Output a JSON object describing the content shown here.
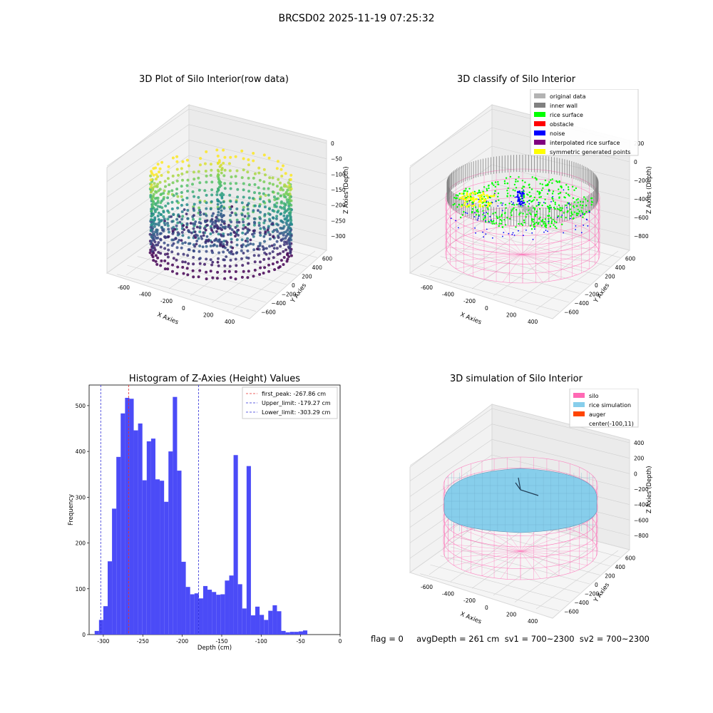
{
  "figure": {
    "suptitle": "BRCSD02 2025-11-19 07:25:32",
    "footer": "flag = 0     avgDepth = 261 cm  sv1 = 700~2300  sv2 = 700~2300"
  },
  "colors": {
    "hist_bar": "#4b4bf7",
    "first_peak": "#e8312d",
    "limit": "#2f2fd8",
    "silo": "#ff69b4",
    "rice": "#87ceeb",
    "auger": "#ff4500",
    "original": "#b3b3b3",
    "inner_wall": "#808080",
    "rice_surface": "#00ff00",
    "obstacle": "#ff0000",
    "noise": "#0000ff",
    "interp_surface": "#800080",
    "symmetric": "#ffff00"
  },
  "chart_data": [
    {
      "type": "scatter",
      "subtype": "3d",
      "title": "3D Plot of Silo Interior(row data)",
      "xlabel": "X Axies",
      "ylabel": "Y Axies",
      "zlabel": "Z Axies (Depth)",
      "x_ticks": [
        "-600",
        "-400",
        "-200",
        "0",
        "200",
        "400"
      ],
      "y_ticks": [
        "600",
        "400",
        "200",
        "0",
        "−200",
        "−400",
        "−600"
      ],
      "z_ticks": [
        "0",
        "−50",
        "−100",
        "−150",
        "−200",
        "−250",
        "−300"
      ],
      "colormap": "viridis"
    },
    {
      "type": "scatter",
      "subtype": "3d",
      "title": "3D classify of Silo Interior",
      "xlabel": "X Axies",
      "ylabel": "Y Axies",
      "zlabel": "Z Axies (Depth)",
      "x_ticks": [
        "-600",
        "-400",
        "-200",
        "0",
        "200",
        "400"
      ],
      "y_ticks": [
        "600",
        "400",
        "200",
        "0",
        "−200",
        "−400",
        "−600"
      ],
      "z_ticks": [
        "200",
        "0",
        "−200",
        "−400",
        "−600",
        "−800"
      ],
      "legend": [
        "original data",
        "inner wall",
        "rice surface",
        "obstacle",
        "noise",
        "interpolated rice surface",
        "symmetric generated points"
      ],
      "legend_position": "top-right"
    },
    {
      "type": "bar",
      "subtype": "histogram",
      "title": "Histogram of Z-Axies (Height) Values",
      "xlabel": "Depth (cm)",
      "ylabel": "Frequency",
      "xlim": [
        -318,
        0
      ],
      "ylim": [
        0,
        545
      ],
      "x_ticks": [
        -300,
        -250,
        -200,
        -150,
        -100,
        -50,
        0
      ],
      "y_ticks": [
        0,
        100,
        200,
        300,
        400,
        500
      ],
      "bin_width": 5.5,
      "bin_start": -311.0,
      "values": [
        8,
        32,
        62,
        160,
        275,
        388,
        483,
        517,
        515,
        446,
        461,
        337,
        422,
        428,
        339,
        336,
        290,
        400,
        519,
        358,
        159,
        104,
        88,
        90,
        79,
        106,
        98,
        93,
        87,
        88,
        118,
        129,
        392,
        110,
        57,
        368,
        42,
        61,
        43,
        32,
        52,
        64,
        51,
        8,
        5,
        6,
        6,
        7,
        9
      ],
      "vlines": [
        {
          "value": -267.86,
          "style": "first_peak"
        },
        {
          "value": -179.27,
          "style": "limit"
        },
        {
          "value": -303.29,
          "style": "limit"
        }
      ],
      "legend": [
        {
          "label": "first_peak: -267.86 cm",
          "style": "first_peak"
        },
        {
          "label": "Upper_limit: -179.27 cm",
          "style": "limit"
        },
        {
          "label": "Lower_limit: -303.29 cm",
          "style": "limit"
        }
      ],
      "legend_position": "top-right"
    },
    {
      "type": "scatter",
      "subtype": "3d-surface",
      "title": "3D simulation of Silo Interior",
      "xlabel": "X Axies",
      "ylabel": "Y Axies",
      "zlabel": "Z Axies (Depth)",
      "x_ticks": [
        "-600",
        "-400",
        "-200",
        "0",
        "200",
        "400"
      ],
      "y_ticks": [
        "600",
        "400",
        "200",
        "0",
        "−200",
        "−400",
        "−600"
      ],
      "z_ticks": [
        "400",
        "200",
        "0",
        "−200",
        "−400",
        "−600",
        "−800"
      ],
      "legend": [
        "silo",
        "rice simulation",
        "auger",
        "center(-100,11)"
      ],
      "legend_position": "top-right"
    }
  ]
}
